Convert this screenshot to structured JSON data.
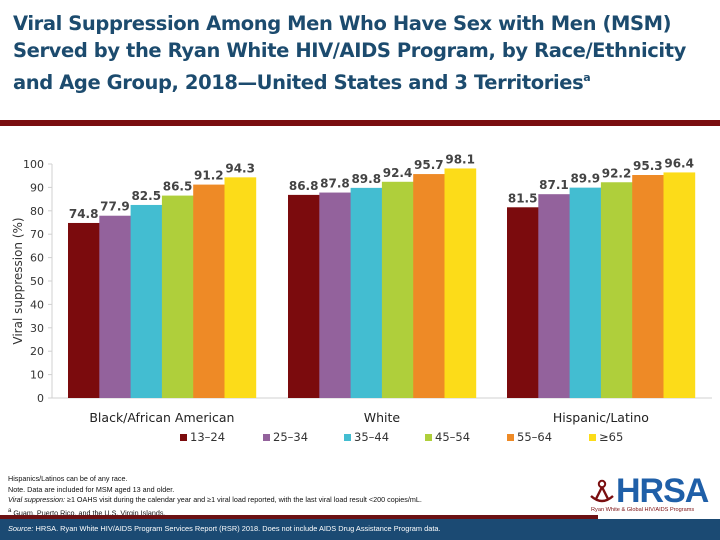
{
  "title": {
    "line1": "Viral Suppression Among Men Who Have Sex with Men (MSM)",
    "line2": "Served by the Ryan White HIV/AIDS Program, by Race/Ethnicity",
    "line3": "and Age Group, 2018—United States and 3 Territories",
    "superscript": "a"
  },
  "chart_data": {
    "type": "bar",
    "title": "",
    "xlabel": "",
    "ylabel": "Viral suppression (%)",
    "ylim": [
      0,
      100
    ],
    "yticks": [
      0,
      10,
      20,
      30,
      40,
      50,
      60,
      70,
      80,
      90,
      100
    ],
    "grid": false,
    "legend_position": "bottom",
    "categories": [
      "Black/African American",
      "White",
      "Hispanic/Latino"
    ],
    "series": [
      {
        "name": "13–24",
        "color": "#7b0b0d",
        "values": [
          74.8,
          86.8,
          81.5
        ]
      },
      {
        "name": "25–34",
        "color": "#93629c",
        "values": [
          77.9,
          87.8,
          87.1
        ]
      },
      {
        "name": "35–44",
        "color": "#43bdd1",
        "values": [
          82.5,
          89.8,
          89.9
        ]
      },
      {
        "name": "45–54",
        "color": "#afcf3b",
        "values": [
          86.5,
          92.4,
          92.2
        ]
      },
      {
        "name": "55–64",
        "color": "#ee8a26",
        "values": [
          91.2,
          95.7,
          95.3
        ]
      },
      {
        "name": "≥65",
        "color": "#fcdc19",
        "values": [
          94.3,
          98.1,
          96.4
        ]
      }
    ]
  },
  "notes": {
    "line1": "Hispanics/Latinos can be of any race.",
    "line2": "Note. Data are included for MSM aged 13 and older.",
    "line3_italic": "Viral suppression:",
    "line3_rest": " ≥1 OAHS visit during the calendar year and ≥1 viral load reported, with the last viral load result <200 copies/mL.",
    "line4_sup": "a",
    "line4": " Guam, Puerto Rico, and the U.S. Virgin Islands."
  },
  "footer": {
    "source_italic": "Source:",
    "source_rest": " HRSA. Ryan White HIV/AIDS Program Services Report (RSR) 2018. Does not include AIDS Drug Assistance Program data."
  },
  "logo": {
    "name": "HRSA",
    "subtitle": "Ryan White & Global HIV/AIDS Programs"
  },
  "colors": {
    "title": "#1c4b6e",
    "rule": "#7a0e10",
    "footer_bg": "#1b4a73"
  }
}
